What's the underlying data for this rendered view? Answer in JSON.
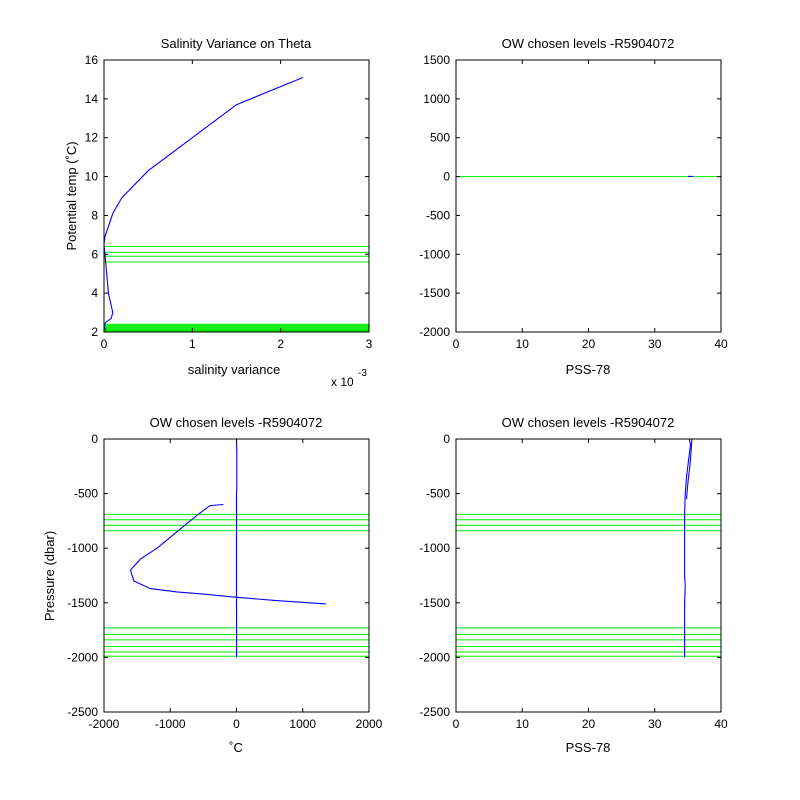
{
  "chart_data": [
    {
      "type": "line",
      "title": "Salinity Variance on Theta",
      "xlabel": "salinity variance",
      "ylabel": "Potential temp (˚C)",
      "xlim": [
        0,
        0.003
      ],
      "ylim": [
        2,
        16
      ],
      "xtick_values": [
        0,
        0.001,
        0.002,
        0.003
      ],
      "xticks": [
        "0",
        "1",
        "2",
        "3"
      ],
      "x_exponent_label": "x 10",
      "x_exponent_power": "-3",
      "yticks": [
        "2",
        "4",
        "6",
        "8",
        "10",
        "12",
        "14",
        "16"
      ],
      "series": [
        {
          "color": "#0000ff",
          "x": [
            0.00225,
            0.0015,
            0.001,
            0.0005,
            0.0002,
            0.0001,
            7e-05,
            1e-05,
            0,
            3e-05,
            5e-05,
            0.0001,
            8e-05,
            2e-05,
            0,
            2e-05
          ],
          "y": [
            15.1,
            13.7,
            12.0,
            10.3,
            8.9,
            8.1,
            7.7,
            6.9,
            6.5,
            5.0,
            4.0,
            3.0,
            2.7,
            2.5,
            2.3,
            2.1
          ]
        }
      ],
      "hlines": [
        6.4,
        6.1,
        5.9,
        5.6,
        2.4,
        2.35,
        2.3,
        2.25,
        2.2,
        2.15,
        2.1,
        2.05
      ],
      "hline_color": "#00ee00"
    },
    {
      "type": "line",
      "title": "OW chosen levels -R5904072",
      "xlabel": "PSS-78",
      "ylabel": "",
      "xlim": [
        0,
        40
      ],
      "ylim": [
        -2000,
        1500
      ],
      "xticks": [
        "0",
        "10",
        "20",
        "30",
        "40"
      ],
      "yticks": [
        "-2000",
        "-1500",
        "-1000",
        "-500",
        "0",
        "500",
        "1000",
        "1500"
      ],
      "series": [
        {
          "color": "#0000ff",
          "x": [
            35.0,
            35.8
          ],
          "y": [
            2,
            2
          ]
        }
      ],
      "hlines": [
        0
      ],
      "hline_color": "#00ee00"
    },
    {
      "type": "line",
      "title": "OW chosen levels -R5904072",
      "xlabel": "˚C",
      "ylabel": "Pressure (dbar)",
      "xlim": [
        -2000,
        2000
      ],
      "ylim": [
        -2500,
        0
      ],
      "xticks": [
        "-2000",
        "-1000",
        "0",
        "1000",
        "2000"
      ],
      "yticks": [
        "-2500",
        "-2000",
        "-1500",
        "-1000",
        "-500",
        "0"
      ],
      "series": [
        {
          "color": "#0000ff",
          "x": [
            0,
            5,
            5,
            0,
            0,
            2,
            0
          ],
          "y": [
            0,
            -150,
            -450,
            -500,
            -1500,
            -1800,
            -2000
          ]
        },
        {
          "color": "#0000ff",
          "x": [
            -200,
            -400,
            -600,
            -900,
            -1200,
            -1450,
            -1600,
            -1550,
            -1300,
            -900,
            -500,
            0,
            600,
            1350
          ],
          "y": [
            -600,
            -610,
            -700,
            -850,
            -1000,
            -1100,
            -1200,
            -1300,
            -1370,
            -1400,
            -1420,
            -1450,
            -1480,
            -1510
          ]
        }
      ],
      "hlines": [
        -690,
        -740,
        -790,
        -840,
        -1730,
        -1790,
        -1840,
        -1900,
        -1950,
        -1990
      ],
      "hline_color": "#00ee00"
    },
    {
      "type": "line",
      "title": "OW chosen levels -R5904072",
      "xlabel": "PSS-78",
      "ylabel": "",
      "xlim": [
        0,
        40
      ],
      "ylim": [
        -2500,
        0
      ],
      "xticks": [
        "0",
        "10",
        "20",
        "30",
        "40"
      ],
      "yticks": [
        "-2500",
        "-2000",
        "-1500",
        "-1000",
        "-500",
        "0"
      ],
      "series": [
        {
          "color": "#0000ff",
          "x": [
            35.2,
            35.4,
            35.1,
            34.8,
            34.6,
            34.5,
            34.5,
            34.5,
            34.6,
            34.5,
            34.5,
            34.5
          ],
          "y": [
            0,
            -50,
            -200,
            -350,
            -500,
            -700,
            -1000,
            -1250,
            -1350,
            -1500,
            -1750,
            -2000
          ]
        },
        {
          "color": "#0000ff",
          "x": [
            35.6,
            35.5,
            35.3,
            35.0,
            34.8
          ],
          "y": [
            0,
            -100,
            -250,
            -400,
            -550
          ]
        }
      ],
      "hlines": [
        -690,
        -740,
        -790,
        -840,
        -1730,
        -1790,
        -1840,
        -1900,
        -1950,
        -1990
      ],
      "hline_color": "#00ee00"
    }
  ]
}
